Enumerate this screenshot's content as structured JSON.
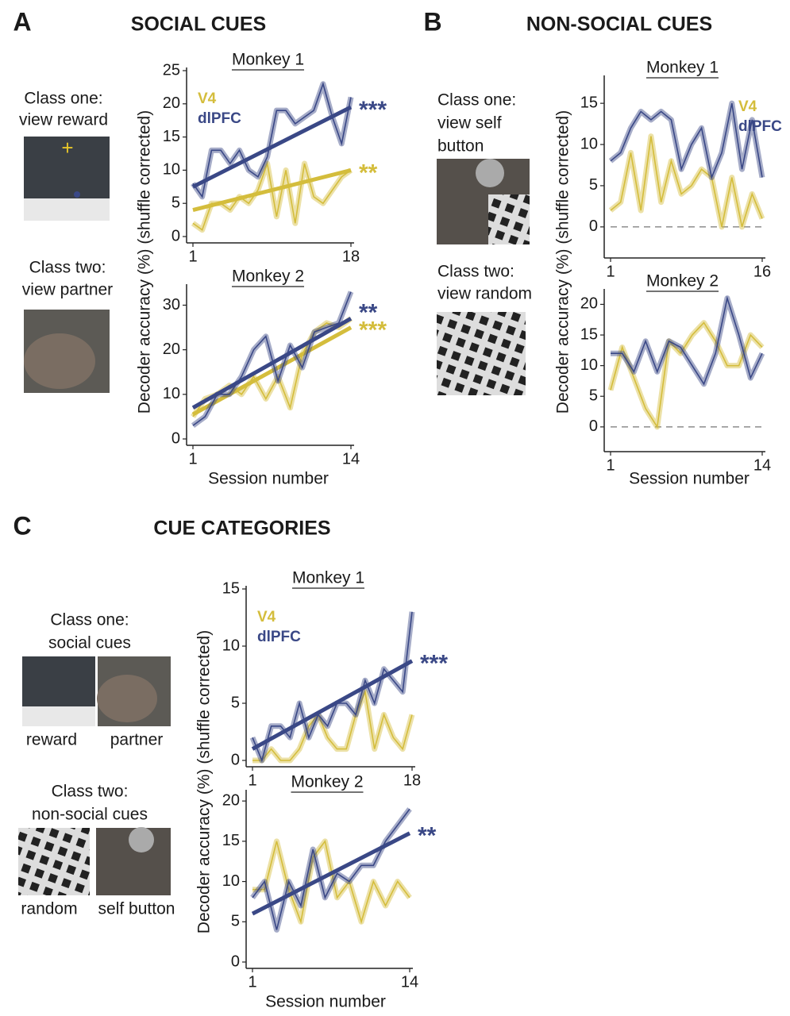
{
  "panels": [
    {
      "label": "A",
      "title": "SOCIAL CUES",
      "ylabel": "Decoder accuracy (%) (shuffle corrected)",
      "xlabel": "Session number",
      "text": [
        "Class one:",
        "view reward",
        "Class two:",
        "view partner"
      ]
    },
    {
      "label": "B",
      "title": "NON-SOCIAL CUES",
      "ylabel": "Decoder accuracy (%) (shuffle corrected)",
      "xlabel": "Session number",
      "text": [
        "Class one:",
        "view self",
        "button",
        "Class two:",
        "view random"
      ]
    },
    {
      "label": "C",
      "title": "CUE CATEGORIES",
      "ylabel": "Decoder accuracy (%) (shuffle corrected)",
      "xlabel": "Session number",
      "text": [
        "Class one:",
        "social cues",
        "reward",
        "partner",
        "Class two:",
        "non-social cues",
        "random",
        "self button"
      ]
    }
  ],
  "chart_data": [
    {
      "type": "line",
      "title": "Monkey 1",
      "x": [
        1,
        2,
        3,
        4,
        5,
        6,
        7,
        8,
        9,
        10,
        11,
        12,
        13,
        14,
        15,
        16,
        17,
        18
      ],
      "xlim": [
        1,
        18
      ],
      "xticks": [
        1,
        18
      ],
      "ylim": [
        0,
        25
      ],
      "yticks": [
        0,
        5,
        10,
        15,
        20,
        25
      ],
      "legend": "upper left",
      "series": [
        {
          "name": "V4",
          "color": "#d4bd3c",
          "values": [
            2,
            1,
            5,
            5,
            4,
            6,
            5,
            7,
            11,
            3,
            10,
            2,
            11,
            6,
            5,
            7,
            9,
            10
          ],
          "trend": [
            4,
            10
          ],
          "stars": "**"
        },
        {
          "name": "dlPFC",
          "color": "#3a4886",
          "values": [
            8,
            6,
            13,
            13,
            11,
            13,
            10,
            9,
            12,
            19,
            19,
            17,
            18,
            19,
            23,
            18,
            14,
            21
          ],
          "trend": [
            7.5,
            19.5
          ],
          "stars": "***"
        }
      ]
    },
    {
      "type": "line",
      "title": "Monkey 2",
      "x": [
        1,
        2,
        3,
        4,
        5,
        6,
        7,
        8,
        9,
        10,
        11,
        12,
        13,
        14
      ],
      "xlim": [
        1,
        14
      ],
      "xticks": [
        1,
        14
      ],
      "ylim": [
        0,
        34
      ],
      "yticks": [
        0,
        10,
        20,
        30
      ],
      "series": [
        {
          "color": "#d4bd3c",
          "values": [
            5,
            9,
            10,
            12,
            10,
            14,
            9,
            14,
            7,
            19,
            24,
            26,
            25,
            27
          ],
          "trend": [
            5.5,
            25
          ],
          "stars": "***"
        },
        {
          "color": "#3a4886",
          "values": [
            3,
            5,
            10,
            10,
            14,
            20,
            23,
            13,
            21,
            16,
            24,
            25,
            26,
            33
          ],
          "trend": [
            7,
            27
          ],
          "stars": "**"
        }
      ]
    },
    {
      "type": "line",
      "title": "Monkey 1",
      "x": [
        1,
        2,
        3,
        4,
        5,
        6,
        7,
        8,
        9,
        10,
        11,
        12,
        13,
        14,
        15,
        16
      ],
      "xlim": [
        1,
        16
      ],
      "xticks": [
        1,
        16
      ],
      "ylim": [
        -3,
        18
      ],
      "yticks": [
        0,
        5,
        10,
        15
      ],
      "legend": "upper right",
      "zero_line": true,
      "series": [
        {
          "name": "V4",
          "color": "#d4bd3c",
          "values": [
            2,
            3,
            9,
            2,
            11,
            3,
            8,
            4,
            5,
            7,
            6,
            0,
            6,
            0,
            4,
            1
          ]
        },
        {
          "name": "dlPFC",
          "color": "#3a4886",
          "values": [
            8,
            9,
            12,
            14,
            13,
            14,
            13,
            7,
            10,
            12,
            6,
            9,
            15,
            7,
            13,
            6
          ]
        }
      ]
    },
    {
      "type": "line",
      "title": "Monkey 2",
      "x": [
        1,
        2,
        3,
        4,
        5,
        6,
        7,
        8,
        9,
        10,
        11,
        12,
        13,
        14
      ],
      "xlim": [
        1,
        14
      ],
      "xticks": [
        1,
        14
      ],
      "ylim": [
        -3,
        22
      ],
      "yticks": [
        0,
        5,
        10,
        15,
        20
      ],
      "zero_line": true,
      "series": [
        {
          "color": "#d4bd3c",
          "values": [
            6,
            13,
            8,
            3,
            0,
            14,
            12,
            15,
            17,
            14,
            10,
            10,
            15,
            13
          ]
        },
        {
          "color": "#3a4886",
          "values": [
            12,
            12,
            9,
            14,
            9,
            14,
            13,
            10,
            7,
            12,
            21,
            15,
            8,
            12
          ]
        }
      ]
    },
    {
      "type": "line",
      "title": "Monkey 1",
      "x": [
        1,
        2,
        3,
        4,
        5,
        6,
        7,
        8,
        9,
        10,
        11,
        12,
        13,
        14,
        15,
        16,
        17,
        18
      ],
      "xlim": [
        1,
        18
      ],
      "xticks": [
        1,
        18
      ],
      "ylim": [
        0,
        15
      ],
      "yticks": [
        0,
        5,
        10,
        15
      ],
      "legend": "upper left",
      "series": [
        {
          "name": "V4",
          "color": "#d4bd3c",
          "values": [
            0,
            0,
            1,
            0,
            0,
            1,
            3,
            4,
            2,
            1,
            1,
            4,
            6,
            1,
            4,
            2,
            1,
            4
          ]
        },
        {
          "name": "dlPFC",
          "color": "#3a4886",
          "values": [
            2,
            0,
            3,
            3,
            2,
            5,
            2,
            4,
            3,
            5,
            5,
            4,
            7,
            5,
            8,
            7,
            6,
            13
          ],
          "trend": [
            1,
            8.7
          ],
          "stars": "***"
        }
      ]
    },
    {
      "type": "line",
      "title": "Monkey 2",
      "x": [
        1,
        2,
        3,
        4,
        5,
        6,
        7,
        8,
        9,
        10,
        11,
        12,
        13,
        14
      ],
      "xlim": [
        1,
        14
      ],
      "xticks": [
        1,
        14
      ],
      "ylim": [
        0,
        21
      ],
      "yticks": [
        0,
        5,
        10,
        15,
        20
      ],
      "series": [
        {
          "color": "#d4bd3c",
          "values": [
            9,
            9,
            15,
            9,
            5,
            13,
            15,
            8,
            10,
            5,
            10,
            7,
            10,
            8
          ]
        },
        {
          "color": "#3a4886",
          "values": [
            8,
            10,
            4,
            10,
            7,
            14,
            8,
            11,
            10,
            12,
            12,
            15,
            17,
            19
          ],
          "trend": [
            6,
            16
          ],
          "stars": "**"
        }
      ]
    }
  ]
}
